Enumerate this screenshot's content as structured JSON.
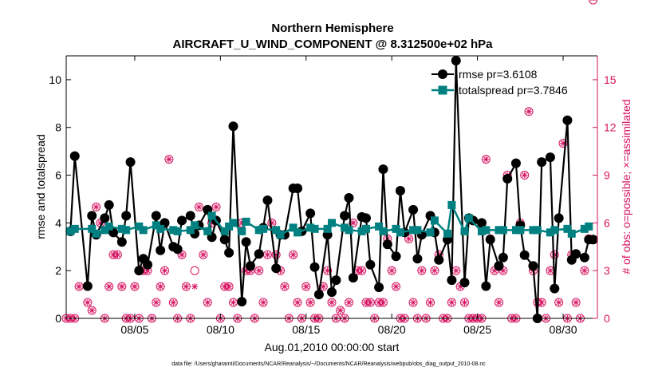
{
  "chart_data": {
    "type": "line",
    "title_line1": "Northern Hemisphere",
    "title_line2": "AIRCRAFT_U_WIND_COMPONENT @ 8.312500e+02 hPa",
    "xlabel": "Aug.01,2010 00:00:00 start",
    "ylabel_left": "rmse and totalspread",
    "ylabel_right": "# of obs: o=possible; ×=assimilated",
    "footer": "data file: /Users/gharamti/Documents/NCAR/Reanalysis/~/Documents/NCAR/Reanalysis/webpub/obs_diag_output_2010-08.nc",
    "x_ticks": [
      {
        "day": 5,
        "label": "08/05"
      },
      {
        "day": 10,
        "label": "08/10"
      },
      {
        "day": 15,
        "label": "08/15"
      },
      {
        "day": 20,
        "label": "08/20"
      },
      {
        "day": 25,
        "label": "08/25"
      },
      {
        "day": 30,
        "label": "08/30"
      }
    ],
    "xlim": [
      1.0,
      32.0
    ],
    "ylim_left": [
      0,
      11
    ],
    "ylim_right": [
      0,
      16.5
    ],
    "yticks_left": [
      "0",
      "2",
      "4",
      "6",
      "8",
      "10"
    ],
    "yticks_left_values": [
      0,
      2,
      4,
      6,
      8,
      10
    ],
    "yticks_right": [
      "0",
      "3",
      "6",
      "9",
      "12",
      "15"
    ],
    "yticks_right_values": [
      0,
      3,
      6,
      9,
      12,
      15
    ],
    "legend": [
      {
        "label": "rmse pr=3.6108",
        "color": "#000000",
        "marker": "circle"
      },
      {
        "label": "totalspread pr=3.7846",
        "color": "#008080",
        "marker": "square"
      }
    ],
    "colors": {
      "rmse": "#000000",
      "spread": "#008080",
      "obs": "#d6105e",
      "axis": "#000000"
    },
    "rmse_x": [
      1.25,
      1.5,
      2.25,
      2.5,
      2.75,
      3.25,
      3.5,
      3.75,
      4.25,
      4.5,
      4.75,
      5.25,
      5.5,
      5.75,
      6.25,
      6.5,
      6.75,
      7.25,
      7.5,
      7.75,
      8.25,
      8.5,
      8.75,
      9.25,
      9.5,
      9.75,
      10.25,
      10.5,
      10.75,
      11.25,
      11.5,
      11.75,
      12.25,
      12.5,
      12.75,
      13.25,
      13.5,
      13.75,
      14.25,
      14.5,
      14.75,
      15.25,
      15.5,
      15.75,
      16.25,
      16.5,
      16.75,
      17.25,
      17.5,
      17.75,
      18.25,
      18.5,
      18.75,
      19.25,
      19.5,
      19.75,
      20.25,
      20.5,
      20.75,
      21.25,
      21.5,
      21.75,
      22.25,
      22.5,
      22.75,
      23.25,
      23.5,
      23.75,
      24.25,
      24.5,
      24.75,
      25.25,
      25.5,
      25.75,
      26.25,
      26.5,
      26.75,
      27.25,
      27.5,
      27.75,
      28.25,
      28.5,
      28.75,
      29.25,
      29.5,
      29.75,
      30.25,
      30.5,
      30.75,
      31.25,
      31.5,
      31.75
    ],
    "rmse": [
      3.65,
      6.8,
      1.35,
      4.3,
      3.5,
      4.2,
      4.75,
      3.6,
      3.2,
      4.3,
      6.55,
      2.0,
      2.5,
      2.25,
      4.3,
      2.85,
      4.0,
      3.0,
      2.9,
      4.1,
      4.3,
      3.55,
      3.9,
      4.55,
      3.4,
      4.1,
      3.3,
      2.75,
      8.05,
      0.7,
      3.2,
      2.2,
      2.7,
      3.8,
      4.95,
      2.1,
      3.5,
      3.5,
      5.45,
      5.45,
      3.65,
      4.4,
      2.15,
      1.0,
      3.5,
      1.1,
      1.6,
      4.3,
      5.05,
      1.7,
      4.25,
      4.2,
      2.25,
      1.3,
      6.25,
      3.1,
      2.6,
      5.35,
      3.6,
      4.55,
      2.5,
      3.5,
      4.3,
      3.6,
      2.45,
      3.3,
      1.6,
      10.8,
      1.5,
      4.2,
      4.1,
      4.0,
      1.35,
      3.3,
      2.2,
      2.55,
      5.85,
      6.5,
      3.9,
      2.65,
      2.2,
      0.0,
      6.55,
      6.75,
      1.25,
      4.2,
      8.3,
      2.45,
      2.7,
      2.55,
      3.3,
      3.3
    ],
    "spread_x": [
      1.25,
      1.5,
      2.5,
      2.75,
      3.25,
      3.5,
      4.25,
      4.5,
      5.25,
      5.5,
      6.25,
      6.5,
      7.25,
      7.5,
      8.25,
      8.5,
      9.25,
      9.5,
      10.25,
      10.5,
      10.75,
      11.25,
      11.5,
      12.25,
      12.5,
      13.25,
      13.5,
      14.25,
      14.5,
      15.25,
      15.5,
      16.25,
      16.5,
      17.25,
      17.5,
      18.25,
      18.5,
      19.25,
      19.5,
      20.25,
      20.5,
      21.25,
      21.5,
      22.25,
      22.5,
      23.25,
      23.5,
      24.25,
      24.5,
      25.25,
      25.5,
      26.25,
      26.5,
      27.25,
      27.5,
      28.25,
      28.5,
      29.25,
      29.5,
      30.25,
      30.5,
      31.25,
      31.5
    ],
    "spread": [
      3.65,
      3.75,
      3.75,
      3.55,
      3.7,
      3.85,
      3.75,
      3.7,
      3.85,
      3.7,
      3.9,
      3.75,
      3.7,
      3.65,
      3.7,
      3.9,
      3.65,
      4.3,
      3.65,
      3.85,
      4.0,
      3.65,
      4.05,
      3.7,
      3.75,
      3.7,
      3.5,
      3.8,
      3.6,
      3.8,
      3.75,
      3.75,
      4.0,
      3.8,
      3.7,
      3.65,
      3.75,
      3.85,
      3.65,
      3.75,
      3.6,
      3.7,
      3.7,
      3.6,
      4.1,
      3.55,
      4.75,
      3.65,
      4.2,
      3.65,
      3.7,
      3.7,
      3.7,
      3.7,
      3.7,
      3.7,
      3.7,
      3.6,
      3.7,
      3.75,
      3.55,
      3.75,
      3.85
    ],
    "possible_x": [
      1.0,
      1.25,
      1.5,
      1.75,
      2.25,
      2.5,
      2.75,
      3.0,
      3.25,
      3.5,
      3.75,
      4.0,
      4.25,
      4.5,
      4.75,
      5.0,
      5.25,
      5.5,
      5.75,
      6.0,
      6.25,
      6.5,
      6.75,
      7.0,
      7.25,
      7.5,
      7.75,
      8.0,
      8.25,
      8.5,
      8.75,
      9.0,
      9.25,
      9.5,
      9.75,
      10.0,
      10.25,
      10.5,
      10.75,
      11.0,
      11.25,
      11.5,
      11.75,
      12.0,
      12.25,
      12.5,
      12.75,
      13.0,
      13.25,
      13.5,
      13.75,
      14.0,
      14.25,
      14.5,
      14.75,
      15.0,
      15.25,
      15.5,
      15.75,
      16.0,
      16.25,
      16.5,
      16.75,
      17.0,
      17.25,
      17.5,
      17.75,
      18.0,
      18.25,
      18.5,
      18.75,
      19.0,
      19.25,
      19.5,
      19.75,
      20.0,
      20.25,
      20.5,
      20.75,
      21.0,
      21.25,
      21.5,
      21.75,
      22.0,
      22.25,
      22.5,
      22.75,
      23.0,
      23.25,
      23.5,
      23.75,
      24.0,
      24.25,
      24.5,
      24.75,
      25.0,
      25.25,
      25.5,
      25.75,
      26.0,
      26.25,
      26.5,
      26.75,
      27.0,
      27.25,
      27.5,
      27.75,
      28.0,
      28.25,
      28.5,
      28.75,
      29.0,
      29.25,
      29.5,
      29.75,
      30.0,
      30.25,
      30.5,
      30.75,
      31.0,
      31.25,
      31.5,
      31.75
    ],
    "possible": [
      0,
      0,
      0,
      2,
      1,
      0.5,
      7,
      6,
      0,
      2,
      4,
      4,
      2,
      0,
      0,
      2,
      0,
      3,
      3,
      0,
      1,
      2,
      3,
      10,
      1,
      0,
      4,
      2,
      0,
      3,
      7,
      4,
      1,
      6,
      7,
      0,
      2,
      2,
      1,
      0,
      6,
      3,
      3,
      0,
      3,
      1,
      4,
      6,
      4,
      3,
      2,
      0,
      4,
      1,
      0,
      2,
      1,
      0,
      0,
      2,
      3,
      1,
      0,
      0.5,
      0,
      1,
      6,
      3,
      3,
      1,
      1,
      0,
      1,
      1,
      5,
      3,
      2,
      0,
      0,
      5,
      1,
      0,
      3,
      0,
      1,
      3,
      4,
      0,
      0,
      1,
      3,
      2,
      1,
      0,
      0,
      0,
      0,
      10,
      5,
      3,
      1,
      3,
      9,
      0,
      0,
      6,
      9,
      13,
      3,
      1,
      1,
      0,
      3,
      4,
      1,
      11,
      0,
      4,
      1,
      0,
      3,
      5
    ],
    "assimilated_x": [
      1.0,
      1.25,
      1.5,
      1.75,
      2.25,
      2.5,
      2.75,
      3.0,
      3.25,
      3.5,
      3.75,
      4.0,
      4.25,
      4.5,
      4.75,
      5.0,
      5.25,
      5.5,
      5.75,
      6.0,
      6.25,
      6.5,
      6.75,
      7.0,
      7.25,
      7.5,
      7.75,
      8.0,
      8.25,
      8.5,
      8.75,
      9.0,
      9.25,
      9.5,
      9.75,
      10.0,
      10.25,
      10.5,
      10.75,
      11.0,
      11.25,
      11.5,
      11.75,
      12.0,
      12.25,
      12.5,
      12.75,
      13.0,
      13.25,
      13.5,
      13.75,
      14.0,
      14.25,
      14.5,
      14.75,
      15.0,
      15.25,
      15.5,
      15.75,
      16.0,
      16.25,
      16.5,
      16.75,
      17.0,
      17.25,
      17.5,
      17.75,
      18.0,
      18.25,
      18.5,
      18.75,
      19.0,
      19.25,
      19.5,
      19.75,
      20.0,
      20.25,
      20.5,
      20.75,
      21.0,
      21.25,
      21.5,
      21.75,
      22.0,
      22.25,
      22.5,
      22.75,
      23.0,
      23.25,
      23.5,
      23.75,
      24.0,
      24.25,
      24.5,
      24.75,
      25.0,
      25.25,
      25.5,
      25.75,
      26.0,
      26.25,
      26.5,
      26.75,
      27.0,
      27.25,
      27.5,
      27.75,
      28.0,
      28.25,
      28.5,
      28.75,
      29.0,
      29.25,
      29.5,
      29.75,
      30.0,
      30.25,
      30.5,
      30.75,
      31.0,
      31.25,
      31.5,
      31.75
    ],
    "assimilated": [
      0,
      0,
      0,
      2,
      1,
      0.5,
      7,
      6,
      0,
      2,
      4,
      4,
      2,
      0,
      0,
      2,
      0,
      3,
      3,
      0,
      1,
      2,
      3,
      10,
      1,
      0,
      4,
      2,
      0,
      2,
      7,
      4,
      1,
      6,
      7,
      0,
      2,
      2,
      1,
      0,
      6,
      3,
      3,
      0,
      3,
      1,
      4,
      6,
      4,
      3,
      2,
      0,
      4,
      1,
      0,
      2,
      1,
      0,
      0,
      2,
      3,
      1,
      0,
      0.5,
      0,
      1,
      6,
      3,
      3,
      1,
      1,
      0,
      1,
      1,
      5,
      3,
      2,
      0,
      0,
      5,
      1,
      0,
      3,
      0,
      1,
      3,
      4,
      0,
      0,
      1,
      3,
      2,
      1,
      0,
      0,
      0,
      0,
      10,
      5,
      3,
      1,
      3,
      9,
      0,
      0,
      6,
      9,
      13,
      3,
      1,
      1,
      0,
      3,
      4,
      1,
      11,
      0,
      4,
      1,
      0,
      3,
      5
    ]
  }
}
